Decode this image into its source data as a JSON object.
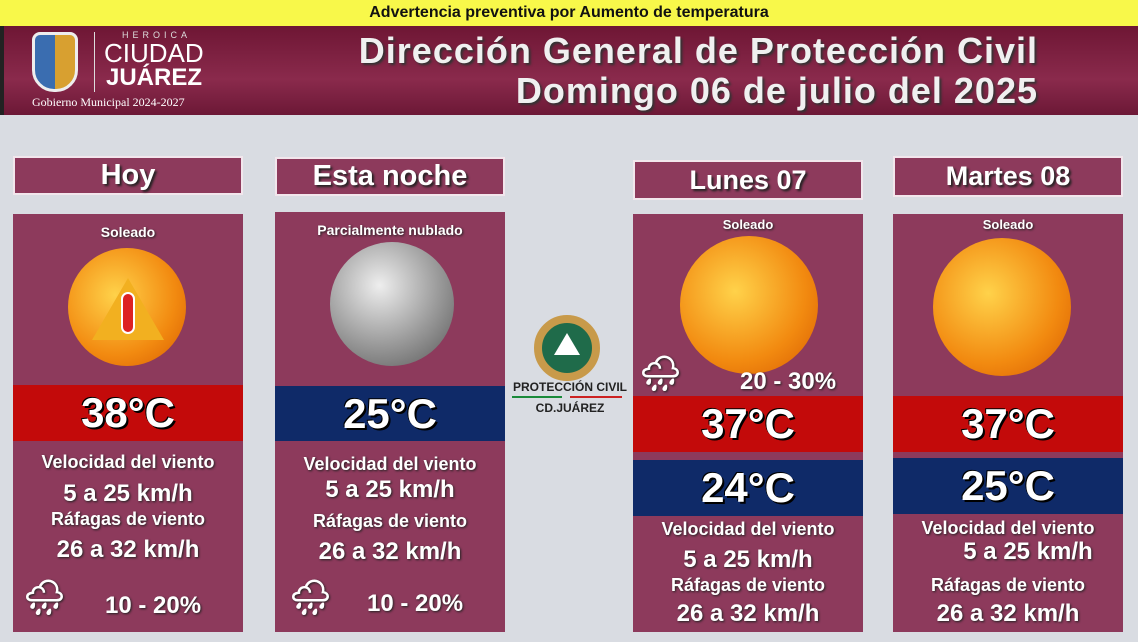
{
  "warning": "Advertencia preventiva por Aumento de temperatura",
  "logo": {
    "heroica": "HEROICA",
    "ciudad": "CIUDAD",
    "juarez": "JUÁREZ",
    "gobierno": "Gobierno Municipal 2024-2027"
  },
  "title": {
    "line1": "Dirección General de Protección Civil",
    "line2": "Domingo 06 de julio del 2025"
  },
  "center_logo": {
    "name": "PROTECCIÓN CIVIL",
    "city": "CD.JUÁREZ"
  },
  "days": [
    {
      "label": "Hoy",
      "condition": "Soleado",
      "icon": "sun-thermometer-warning-icon",
      "high": "38°C",
      "wind_label": "Velocidad del viento",
      "wind": "5 a 25 km/h",
      "gust_label": "Ráfagas de viento",
      "gust": "26 a 32 km/h",
      "rain": "10 - 20%"
    },
    {
      "label": "Esta noche",
      "condition": "Parcialmente nublado",
      "icon": "moon-icon",
      "low": "25°C",
      "wind_label": "Velocidad del viento",
      "wind": "5 a 25 km/h",
      "gust_label": "Ráfagas de viento",
      "gust": "26 a 32 km/h",
      "rain": "10 - 20%"
    },
    {
      "label": "Lunes 07",
      "condition": "Soleado",
      "icon": "sun-icon",
      "rain": "20 - 30%",
      "high": "37°C",
      "low": "24°C",
      "wind_label": "Velocidad del viento",
      "wind": "5 a 25 km/h",
      "gust_label": "Ráfagas de viento",
      "gust": "26 a 32 km/h"
    },
    {
      "label": "Martes 08",
      "condition": "Soleado",
      "icon": "sun-icon",
      "high": "37°C",
      "low": "25°C",
      "wind_label": "Velocidad del viento",
      "wind": "5 a 25 km/h",
      "gust_label": "Ráfagas de viento",
      "gust": "26 a 32 km/h"
    }
  ],
  "colors": {
    "header": "#7a1f40",
    "card": "#8d3a5c",
    "high": "#c30a0a",
    "low": "#0f2a68",
    "warning": "#f8f84a"
  }
}
